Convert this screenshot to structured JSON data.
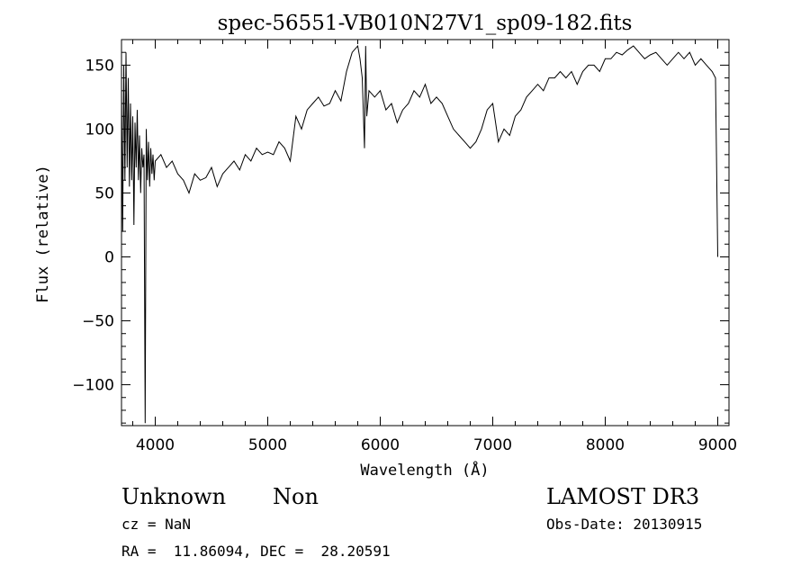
{
  "chart_data": {
    "type": "line",
    "title": "spec-56551-VB010N27V1_sp09-182.fits",
    "xlabel": "Wavelength (Å)",
    "ylabel": "Flux (relative)",
    "xlim": [
      3700,
      9100
    ],
    "ylim": [
      -132,
      170
    ],
    "x_ticks": [
      4000,
      5000,
      6000,
      7000,
      8000,
      9000
    ],
    "y_ticks": [
      -100,
      -50,
      0,
      50,
      100,
      150
    ],
    "grid": false,
    "line_color": "#000000",
    "series": [
      {
        "x": [
          3700,
          3710,
          3720,
          3730,
          3740,
          3750,
          3760,
          3770,
          3780,
          3790,
          3800,
          3810,
          3820,
          3830,
          3840,
          3850,
          3860,
          3870,
          3880,
          3890,
          3900,
          3910,
          3920,
          3930,
          3940,
          3950,
          3960,
          3970,
          3980,
          3990,
          4000,
          4050,
          4100,
          4150,
          4200,
          4250,
          4300,
          4350,
          4400,
          4450,
          4500,
          4550,
          4600,
          4650,
          4700,
          4750,
          4800,
          4850,
          4900,
          4950,
          5000,
          5050,
          5100,
          5150,
          5200,
          5250,
          5300,
          5350,
          5400,
          5450,
          5500,
          5550,
          5600,
          5650,
          5700,
          5750,
          5800,
          5820,
          5840,
          5860,
          5870,
          5880,
          5900,
          5950,
          6000,
          6050,
          6100,
          6150,
          6200,
          6250,
          6300,
          6350,
          6400,
          6450,
          6500,
          6550,
          6600,
          6650,
          6700,
          6750,
          6800,
          6850,
          6900,
          6950,
          7000,
          7050,
          7100,
          7150,
          7200,
          7250,
          7300,
          7350,
          7400,
          7450,
          7500,
          7550,
          7600,
          7650,
          7700,
          7750,
          7800,
          7850,
          7900,
          7950,
          8000,
          8050,
          8100,
          8150,
          8200,
          8250,
          8300,
          8350,
          8400,
          8450,
          8500,
          8550,
          8600,
          8650,
          8700,
          8750,
          8800,
          8850,
          8900,
          8950,
          8980,
          9000
        ],
        "values": [
          130,
          20,
          150,
          60,
          160,
          70,
          140,
          55,
          120,
          60,
          110,
          25,
          105,
          70,
          115,
          60,
          95,
          50,
          85,
          70,
          80,
          -130,
          100,
          60,
          90,
          55,
          85,
          65,
          80,
          60,
          75,
          80,
          70,
          75,
          65,
          60,
          50,
          65,
          60,
          62,
          70,
          55,
          65,
          70,
          75,
          68,
          80,
          75,
          85,
          80,
          82,
          80,
          90,
          85,
          75,
          110,
          100,
          115,
          120,
          125,
          118,
          120,
          130,
          122,
          145,
          160,
          165,
          155,
          140,
          85,
          165,
          110,
          130,
          125,
          130,
          115,
          120,
          105,
          115,
          120,
          130,
          125,
          135,
          120,
          125,
          120,
          110,
          100,
          95,
          90,
          85,
          90,
          100,
          115,
          120,
          90,
          100,
          95,
          110,
          115,
          125,
          130,
          135,
          130,
          140,
          140,
          145,
          140,
          145,
          135,
          145,
          150,
          150,
          145,
          155,
          155,
          160,
          158,
          162,
          165,
          160,
          155,
          158,
          160,
          155,
          150,
          155,
          160,
          155,
          160,
          150,
          155,
          150,
          145,
          140,
          0
        ]
      }
    ]
  },
  "info": {
    "class_label": "Unknown",
    "subclass_label": "Non",
    "cz_text": "cz = NaN",
    "radec_text": "RA =  11.86094, DEC =  28.20591",
    "survey": "LAMOST DR3",
    "obs_date": "Obs-Date: 20130915"
  }
}
